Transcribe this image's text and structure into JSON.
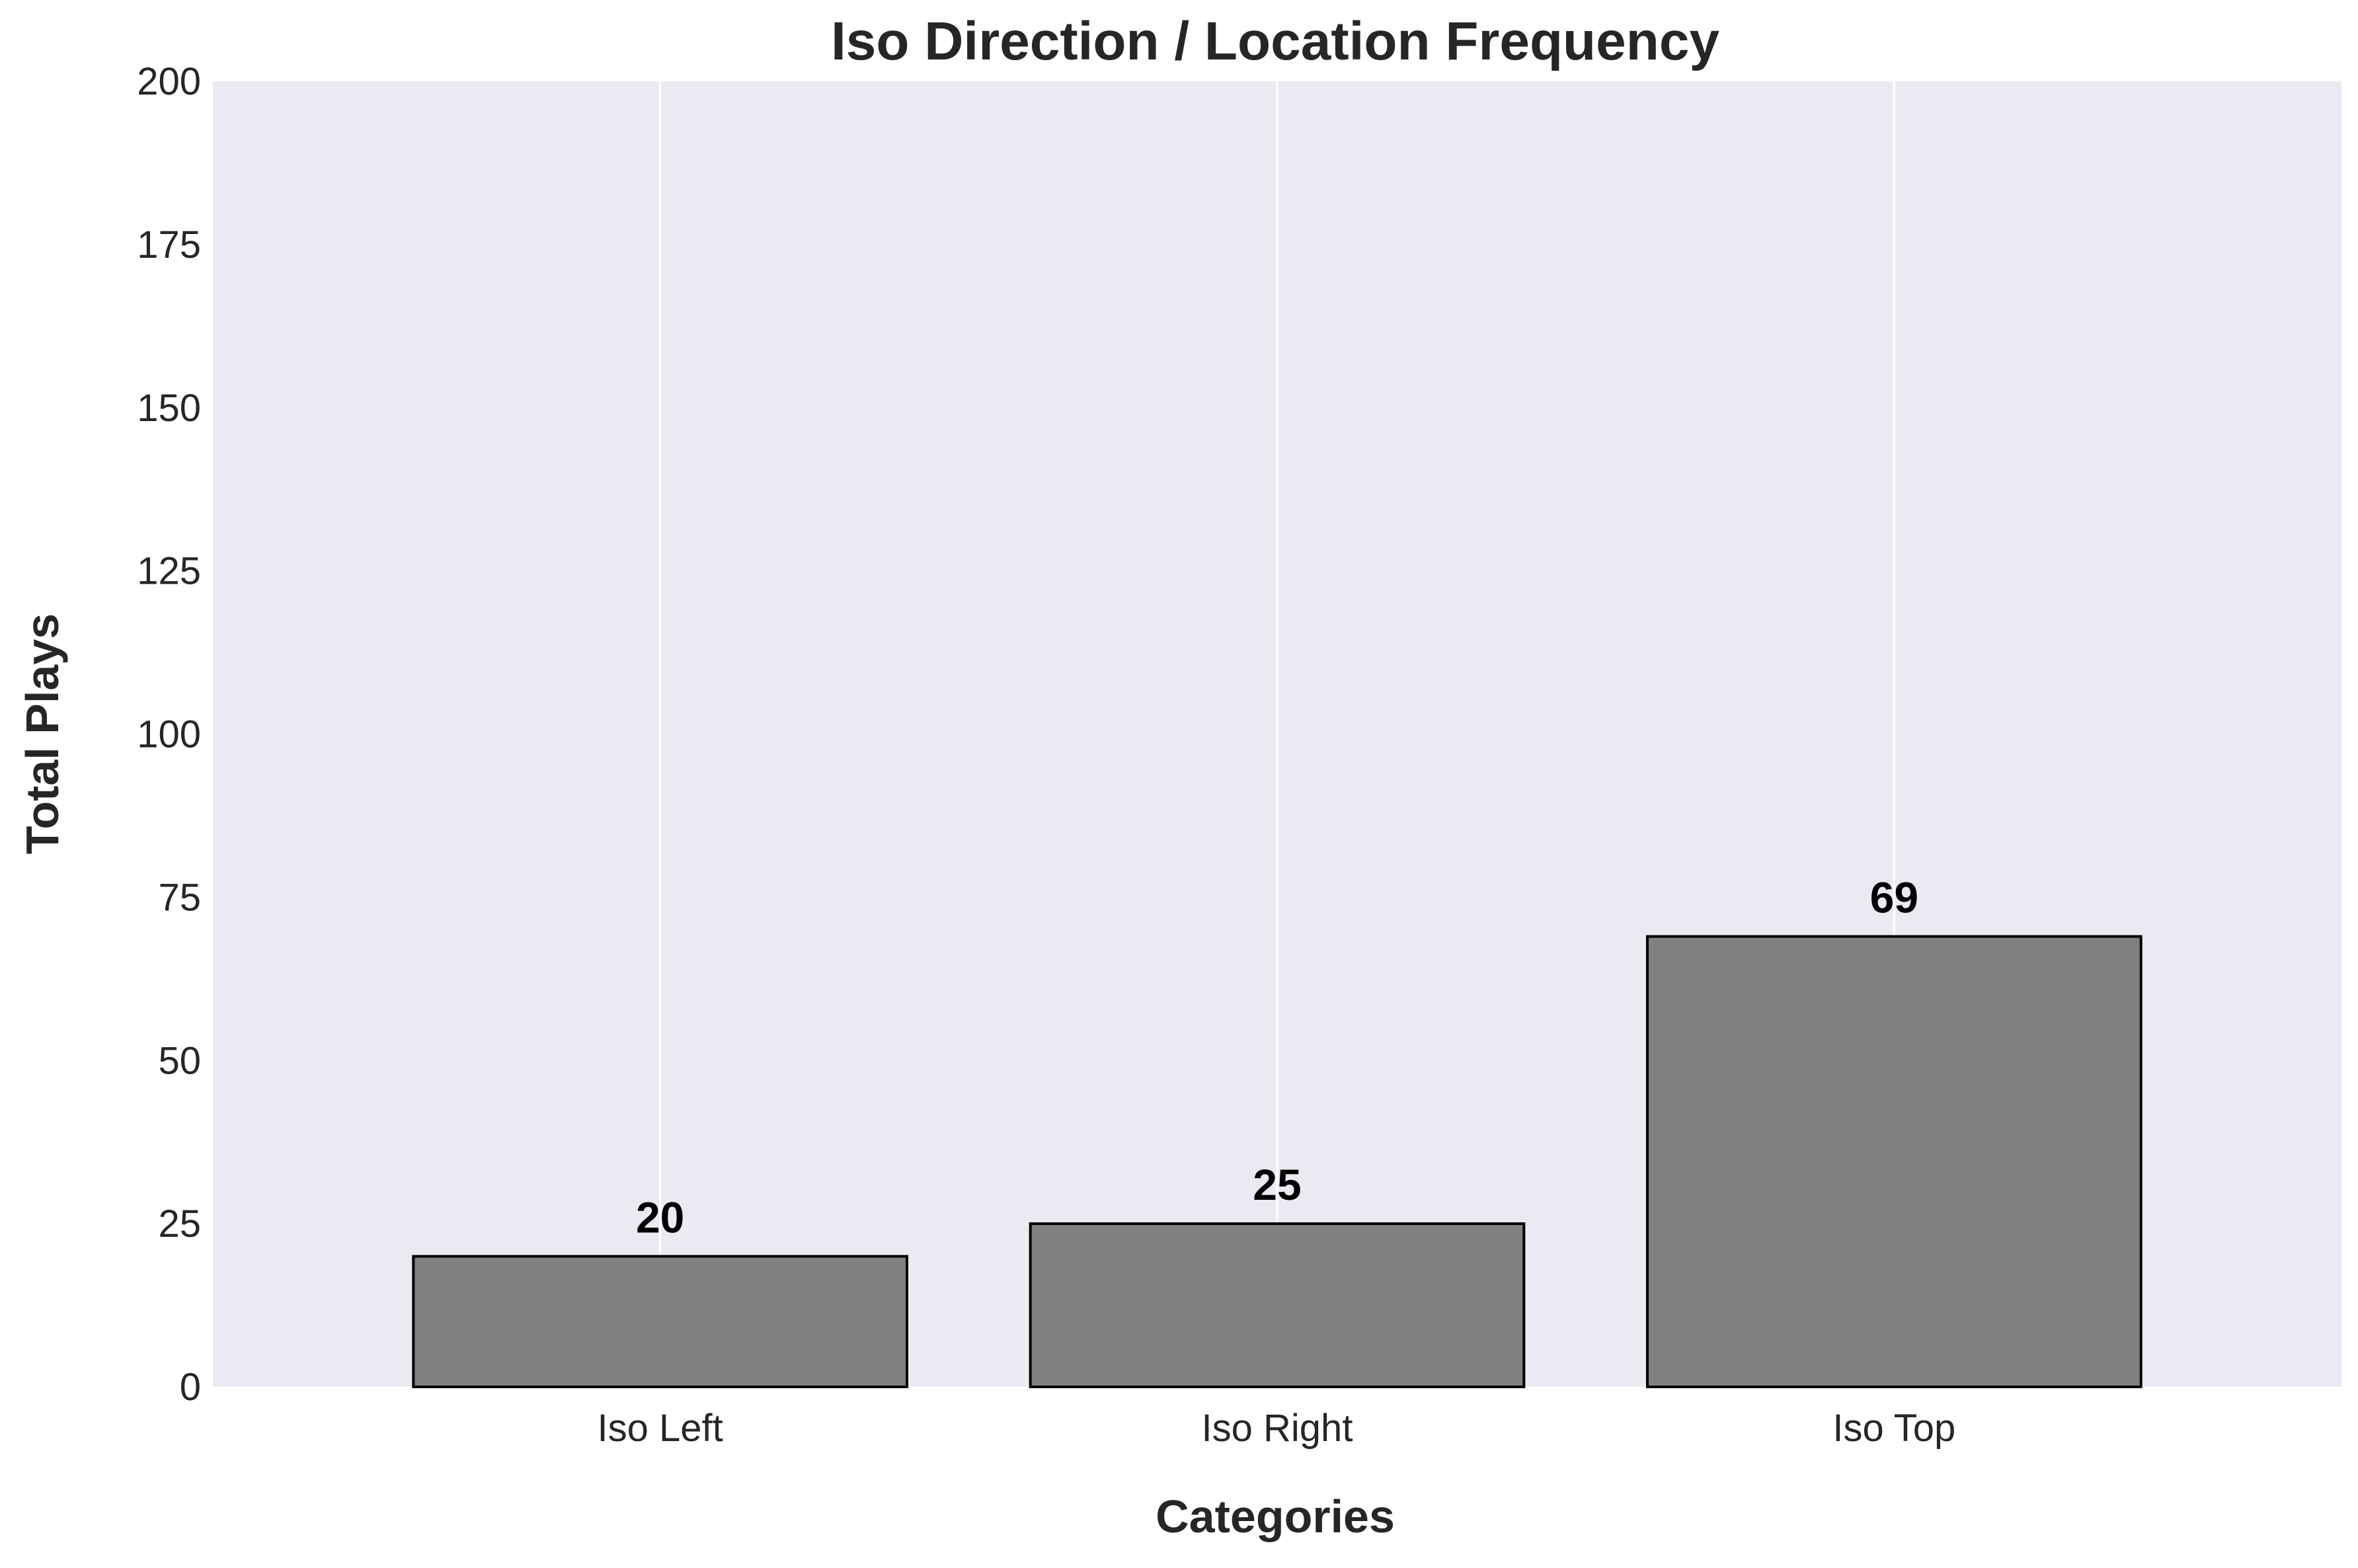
{
  "chart_data": {
    "type": "bar",
    "title": "Iso Direction / Location Frequency",
    "xlabel": "Categories",
    "ylabel": "Total Plays",
    "categories": [
      "Iso Left",
      "Iso Right",
      "Iso Top"
    ],
    "values": [
      20,
      25,
      69
    ],
    "value_labels": [
      "20",
      "25",
      "69"
    ],
    "ylim": [
      0,
      200
    ],
    "yticks": [
      0,
      25,
      50,
      75,
      100,
      125,
      150,
      175,
      200
    ],
    "ytick_labels": [
      "0",
      "25",
      "50",
      "75",
      "100",
      "125",
      "150",
      "175",
      "200"
    ],
    "grid": "vertical-at-categories",
    "colors": {
      "plot_background": "#eaeaf2",
      "bar_fill": "#808080",
      "bar_edge": "#000000",
      "grid": "#ffffff",
      "text": "#262626"
    }
  }
}
